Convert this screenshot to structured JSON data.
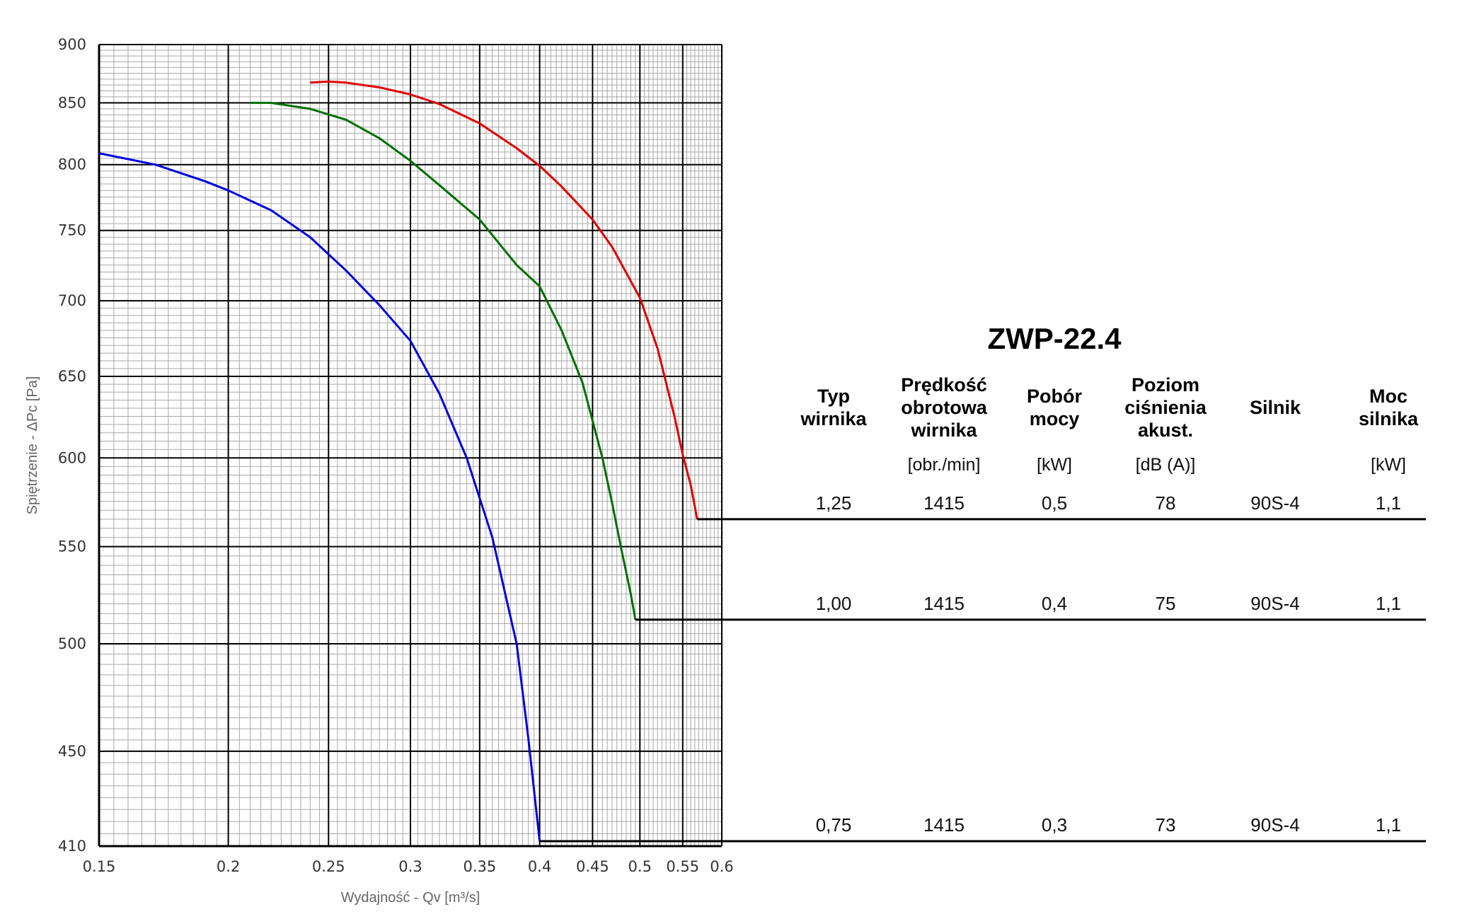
{
  "chart_data": {
    "type": "line",
    "title": "ZWP-22.4",
    "xlabel": "Wydajność - Qv [m³/s]",
    "ylabel": "Spiętrzenie - ΔPc [Pa]",
    "xscale": "log",
    "yscale": "log",
    "xlim": [
      0.15,
      0.6
    ],
    "ylim": [
      410,
      900
    ],
    "grid": true,
    "x_ticks": [
      "0.15",
      "0.2",
      "0.25",
      "0.3",
      "0.35",
      "0.4",
      "0.45",
      "0.5",
      "0.55",
      "0.6"
    ],
    "y_ticks": [
      "410",
      "450",
      "500",
      "550",
      "600",
      "650",
      "700",
      "750",
      "800",
      "850",
      "900"
    ],
    "series": [
      {
        "color": "#e00000",
        "impeller": "1,25",
        "points": [
          [
            0.24,
            867
          ],
          [
            0.25,
            868
          ],
          [
            0.26,
            867
          ],
          [
            0.28,
            863
          ],
          [
            0.3,
            857
          ],
          [
            0.32,
            849
          ],
          [
            0.35,
            833
          ],
          [
            0.38,
            813
          ],
          [
            0.4,
            799
          ],
          [
            0.42,
            783
          ],
          [
            0.45,
            758
          ],
          [
            0.47,
            738
          ],
          [
            0.5,
            702
          ],
          [
            0.52,
            668
          ],
          [
            0.54,
            625
          ],
          [
            0.55,
            602
          ],
          [
            0.56,
            584
          ],
          [
            0.568,
            565
          ]
        ]
      },
      {
        "color": "#007000",
        "impeller": "1,00",
        "points": [
          [
            0.21,
            850
          ],
          [
            0.22,
            850
          ],
          [
            0.24,
            845
          ],
          [
            0.26,
            836
          ],
          [
            0.28,
            821
          ],
          [
            0.3,
            803
          ],
          [
            0.32,
            784
          ],
          [
            0.35,
            758
          ],
          [
            0.38,
            725
          ],
          [
            0.4,
            710
          ],
          [
            0.42,
            680
          ],
          [
            0.44,
            646
          ],
          [
            0.46,
            600
          ],
          [
            0.47,
            574
          ],
          [
            0.48,
            548
          ],
          [
            0.49,
            525
          ],
          [
            0.495,
            512
          ]
        ]
      },
      {
        "color": "#0000e0",
        "impeller": "0,75",
        "points": [
          [
            0.15,
            809
          ],
          [
            0.17,
            800
          ],
          [
            0.19,
            787
          ],
          [
            0.2,
            780
          ],
          [
            0.22,
            765
          ],
          [
            0.24,
            745
          ],
          [
            0.26,
            721
          ],
          [
            0.28,
            697
          ],
          [
            0.3,
            673
          ],
          [
            0.32,
            639
          ],
          [
            0.34,
            600
          ],
          [
            0.36,
            555
          ],
          [
            0.38,
            500
          ],
          [
            0.39,
            456
          ],
          [
            0.4,
            412
          ]
        ]
      }
    ]
  },
  "table": {
    "title": "ZWP-22.4",
    "headers": [
      {
        "lines": [
          "Typ",
          "wirnika"
        ],
        "unit": ""
      },
      {
        "lines": [
          "Prędkość",
          "obrotowa",
          "wirnika"
        ],
        "unit": "[obr./min]"
      },
      {
        "lines": [
          "Pobór",
          "mocy"
        ],
        "unit": "[kW]"
      },
      {
        "lines": [
          "Poziom",
          "ciśnienia",
          "akust."
        ],
        "unit": "[dB (A)]"
      },
      {
        "lines": [
          "Silnik"
        ],
        "unit": ""
      },
      {
        "lines": [
          "Moc",
          "silnika"
        ],
        "unit": "[kW]"
      }
    ],
    "rows": [
      [
        "1,25",
        "1415",
        "0,5",
        "78",
        "90S-4",
        "1,1"
      ],
      [
        "1,00",
        "1415",
        "0,4",
        "75",
        "90S-4",
        "1,1"
      ],
      [
        "0,75",
        "1415",
        "0,3",
        "73",
        "90S-4",
        "1,1"
      ]
    ]
  }
}
